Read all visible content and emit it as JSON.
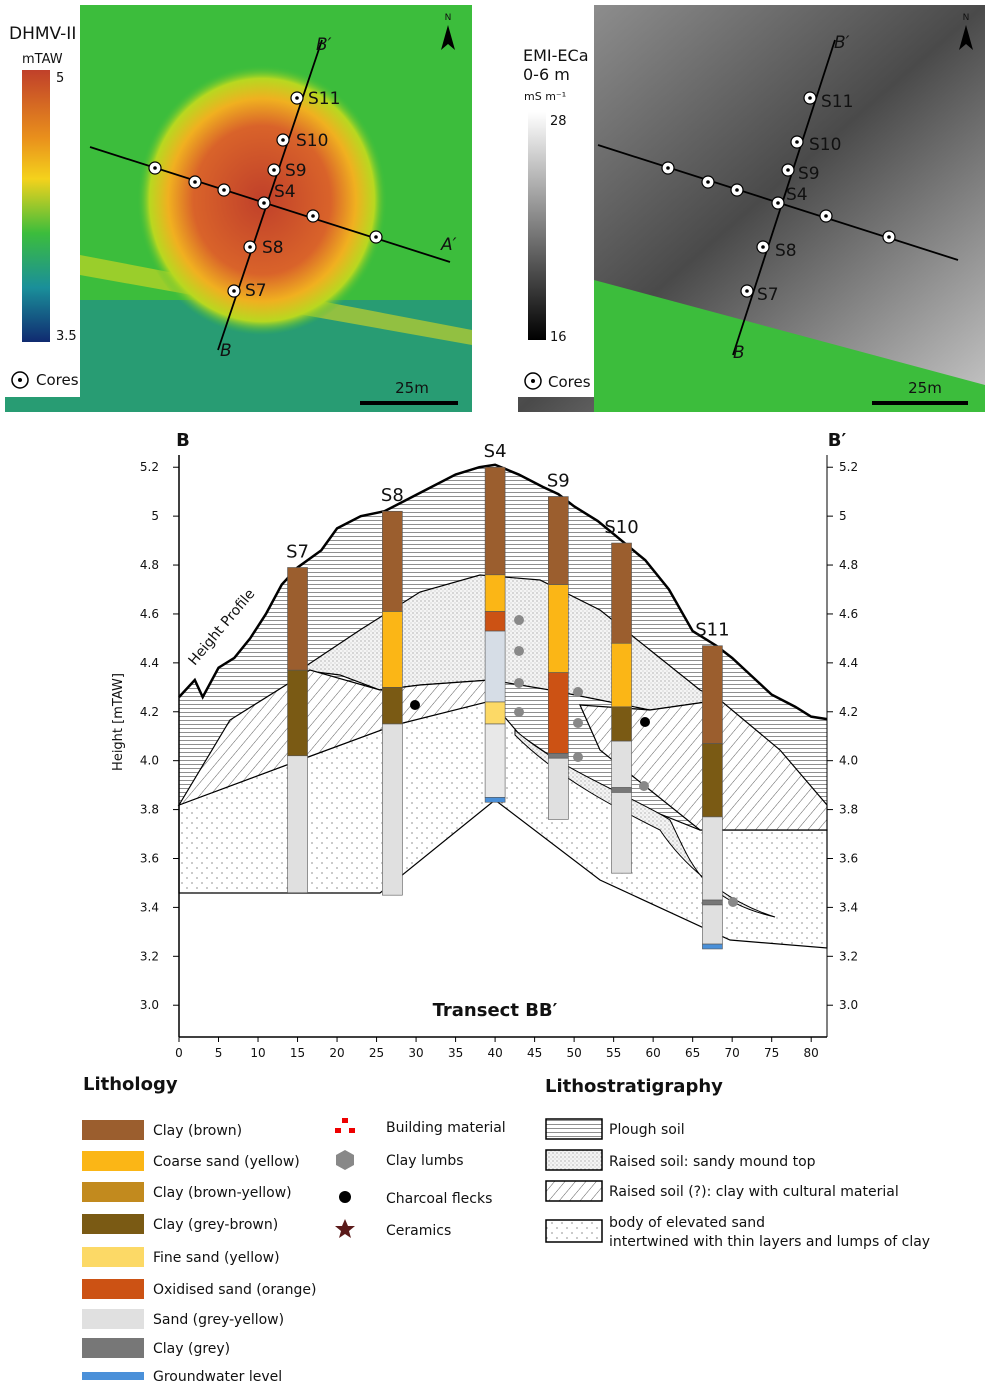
{
  "maps": [
    {
      "title": "DHMV-II",
      "unit": "mTAW",
      "scale_max": 5,
      "scale_min": 3.5,
      "cores_label": "Cores",
      "scale_bar": "25m",
      "north": "N",
      "labels": [
        "B′",
        "A′",
        "B",
        "S11",
        "S10",
        "S9",
        "S4",
        "S8",
        "S7"
      ]
    },
    {
      "title": "EMI-ECa",
      "subtitle": "0-6 m",
      "unit": "mS m⁻¹",
      "scale_max": 28,
      "scale_min": 16,
      "cores_label": "Cores",
      "scale_bar": "25m",
      "north": "N",
      "labels": [
        "B′",
        "B",
        "S11",
        "S10",
        "S9",
        "S4",
        "S8",
        "S7"
      ]
    }
  ],
  "section": {
    "title": "Transect BB′",
    "left_label": "B",
    "right_label": "B′",
    "ylabel": "Height [mTAW]",
    "profile_label": "Height Profile",
    "xlim": [
      0,
      82
    ],
    "ylim": [
      2.87,
      5.25
    ],
    "xticks": [
      0,
      5,
      10,
      15,
      20,
      25,
      30,
      35,
      40,
      45,
      50,
      55,
      60,
      65,
      70,
      75,
      80
    ],
    "yticks": [
      {
        "value": 3.0,
        "label": "3.0"
      },
      3.2,
      3.4,
      3.6,
      3.8,
      {
        "value": 4.0,
        "label": "4.0"
      },
      4.2,
      4.4,
      4.6,
      4.8,
      5,
      5.2
    ],
    "profile": {
      "x": [
        0,
        2,
        3,
        5,
        7,
        9,
        11,
        13,
        15,
        18,
        20,
        23,
        26,
        29,
        32,
        35,
        38,
        40,
        43,
        46,
        48,
        50,
        53,
        56,
        59,
        62,
        65,
        68,
        70,
        72,
        75,
        78,
        80,
        82
      ],
      "y": [
        4.26,
        4.33,
        4.26,
        4.38,
        4.42,
        4.5,
        4.6,
        4.72,
        4.79,
        4.86,
        4.95,
        5.0,
        5.02,
        5.07,
        5.12,
        5.17,
        5.2,
        5.21,
        5.17,
        5.12,
        5.09,
        5.04,
        4.98,
        4.9,
        4.82,
        4.7,
        4.53,
        4.47,
        4.42,
        4.36,
        4.27,
        4.22,
        4.18,
        4.17
      ]
    },
    "cores": [
      {
        "name": "S7",
        "x": 15,
        "segments": [
          {
            "color": "#9b5e2e",
            "top": 4.79,
            "bottom": 4.37
          },
          {
            "color": "#7a5a14",
            "top": 4.37,
            "bottom": 4.02
          },
          {
            "color": "#e0e0e0",
            "top": 4.02,
            "bottom": 3.46
          }
        ]
      },
      {
        "name": "S8",
        "x": 27,
        "segments": [
          {
            "color": "#9b5e2e",
            "top": 5.02,
            "bottom": 4.61
          },
          {
            "color": "#fbb616",
            "top": 4.61,
            "bottom": 4.3
          },
          {
            "color": "#7a5a14",
            "top": 4.3,
            "bottom": 4.15
          },
          {
            "color": "#e0e0e0",
            "top": 4.15,
            "bottom": 3.45
          }
        ]
      },
      {
        "name": "S4",
        "x": 40,
        "segments": [
          {
            "color": "#9b5e2e",
            "top": 5.2,
            "bottom": 4.76
          },
          {
            "color": "#fbb616",
            "top": 4.76,
            "bottom": 4.61
          },
          {
            "color": "#cc5214",
            "top": 4.61,
            "bottom": 4.53
          },
          {
            "color": "#d6dde6",
            "top": 4.53,
            "bottom": 4.24
          },
          {
            "color": "#fcd966",
            "top": 4.24,
            "bottom": 4.15
          },
          {
            "color": "#e8e8e8",
            "top": 4.15,
            "bottom": 3.85
          },
          {
            "color": "#4a90d9",
            "top": 3.85,
            "bottom": 3.83
          }
        ]
      },
      {
        "name": "S9",
        "x": 48,
        "segments": [
          {
            "color": "#9b5e2e",
            "top": 5.08,
            "bottom": 4.72
          },
          {
            "color": "#fbb616",
            "top": 4.72,
            "bottom": 4.36
          },
          {
            "color": "#cc5214",
            "top": 4.36,
            "bottom": 4.03
          },
          {
            "color": "#777777",
            "top": 4.03,
            "bottom": 4.01
          },
          {
            "color": "#e0e0e0",
            "top": 4.01,
            "bottom": 3.76
          }
        ]
      },
      {
        "name": "S10",
        "x": 56,
        "segments": [
          {
            "color": "#9b5e2e",
            "top": 4.89,
            "bottom": 4.48
          },
          {
            "color": "#fbb616",
            "top": 4.48,
            "bottom": 4.22
          },
          {
            "color": "#7a5a14",
            "top": 4.22,
            "bottom": 4.08
          },
          {
            "color": "#e0e0e0",
            "top": 4.08,
            "bottom": 3.89
          },
          {
            "color": "#777777",
            "top": 3.89,
            "bottom": 3.87
          },
          {
            "color": "#e0e0e0",
            "top": 3.87,
            "bottom": 3.54
          }
        ]
      },
      {
        "name": "S11",
        "x": 67.5,
        "segments": [
          {
            "color": "#9b5e2e",
            "top": 4.47,
            "bottom": 4.07
          },
          {
            "color": "#7a5a14",
            "top": 4.07,
            "bottom": 3.77
          },
          {
            "color": "#e0e0e0",
            "top": 3.77,
            "bottom": 3.43
          },
          {
            "color": "#777777",
            "top": 3.43,
            "bottom": 3.41
          },
          {
            "color": "#e0e0e0",
            "top": 3.41,
            "bottom": 3.25
          },
          {
            "color": "#4a90d9",
            "top": 3.25,
            "bottom": 3.23
          }
        ]
      }
    ]
  },
  "lithology": {
    "title": "Lithology",
    "items": [
      {
        "name": "Clay (brown)",
        "color": "#9b5e2e"
      },
      {
        "name": "Coarse sand (yellow)",
        "color": "#fbb616"
      },
      {
        "name": "Clay (brown-yellow)",
        "color": "#c28a1e"
      },
      {
        "name": "Clay (grey-brown)",
        "color": "#7a5a14"
      },
      {
        "name": "Fine sand (yellow)",
        "color": "#fcd966"
      },
      {
        "name": "Oxidised sand (orange)",
        "color": "#cc5214"
      },
      {
        "name": "Sand (grey-yellow)",
        "color": "#e0e0e0"
      },
      {
        "name": "Clay (grey)",
        "color": "#777777"
      },
      {
        "name": "Groundwater level",
        "color": "#4a90d9"
      }
    ]
  },
  "symbols": [
    "Building material",
    "Clay lumbs",
    "Charcoal flecks",
    "Ceramics"
  ],
  "lithostratigraphy": {
    "title": "Lithostratigraphy",
    "items": [
      "Plough soil",
      "Raised soil: sandy mound top",
      "Raised soil (?): clay with cultural material",
      "body of elevated sand",
      "intertwined with thin layers and lumps of clay"
    ]
  }
}
